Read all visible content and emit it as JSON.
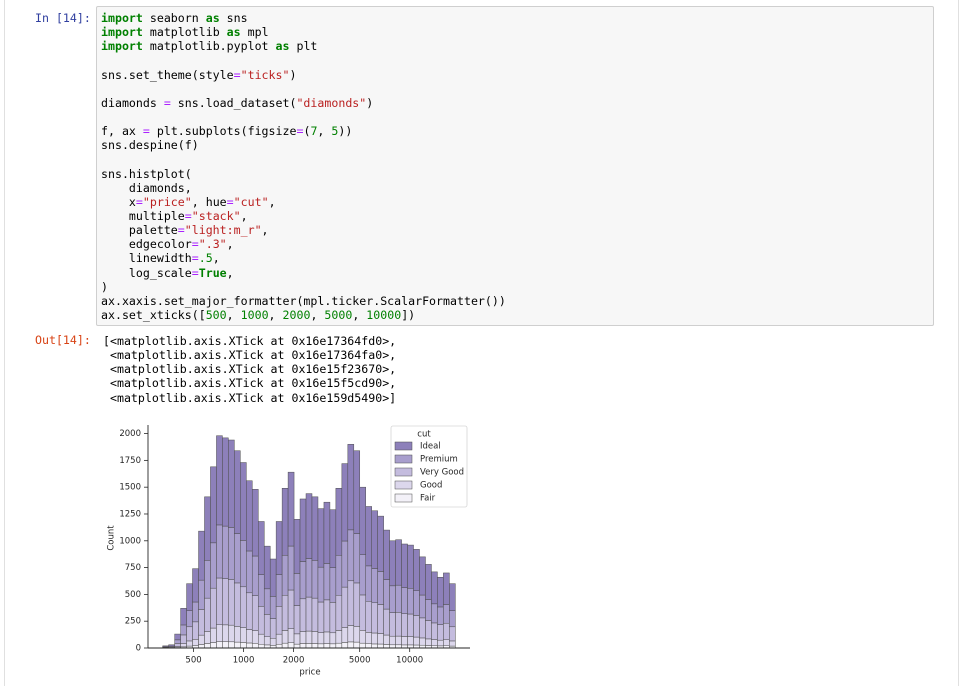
{
  "input_prompt": "In [14]:",
  "code_blocks": [
    [
      "import seaborn as sns",
      "import matplotlib as mpl",
      "import matplotlib.pyplot as plt"
    ],
    [
      "sns.set_theme(style=\"ticks\")"
    ],
    [
      "diamonds = sns.load_dataset(\"diamonds\")"
    ],
    [
      "f, ax = plt.subplots(figsize=(7, 5))",
      "sns.despine(f)"
    ],
    [
      "sns.histplot(",
      "    diamonds,",
      "    x=\"price\", hue=\"cut\",",
      "    multiple=\"stack\",",
      "    palette=\"light:m_r\",",
      "    edgecolor=\".3\",",
      "    linewidth=.5,",
      "    log_scale=True,",
      ")",
      "ax.xaxis.set_major_formatter(mpl.ticker.ScalarFormatter())",
      "ax.set_xticks([500, 1000, 2000, 5000, 10000])"
    ]
  ],
  "output_prompt": "Out[14]:",
  "output_lines": [
    "[<matplotlib.axis.XTick at 0x16e17364fd0>,",
    " <matplotlib.axis.XTick at 0x16e17364fa0>,",
    " <matplotlib.axis.XTick at 0x16e15f23670>,",
    " <matplotlib.axis.XTick at 0x16e15f5cd90>,",
    " <matplotlib.axis.XTick at 0x16e159d5490>]"
  ],
  "chart_data": {
    "type": "histogram",
    "stacked": true,
    "x_label": "price",
    "y_label": "Count",
    "log_x": true,
    "legend_title": "cut",
    "legend_position": "upper-right",
    "edge_color": "#4d4d4d",
    "xlim": [
      266,
      23070
    ],
    "ylim": [
      0,
      2080
    ],
    "xticks": [
      500,
      1000,
      2000,
      5000,
      10000
    ],
    "yticks": [
      0,
      250,
      500,
      750,
      1000,
      1250,
      1500,
      1750,
      2000
    ],
    "bins": [
      326,
      354,
      385,
      418,
      454,
      493,
      536,
      582,
      632,
      687,
      746,
      810,
      880,
      956,
      1039,
      1128,
      1226,
      1332,
      1447,
      1571,
      1707,
      1854,
      2014,
      2188,
      2377,
      2582,
      2805,
      3047,
      3310,
      3595,
      3906,
      4243,
      4609,
      5006,
      5438,
      5908,
      6417,
      6971,
      7573,
      8226,
      8936,
      9707,
      10545,
      11455,
      12443,
      13517,
      14683,
      15950,
      17326,
      18821
    ],
    "series": [
      {
        "name": "Ideal",
        "color": "#8d80ba",
        "values": [
          8,
          12,
          54,
          155,
          252,
          311,
          457,
          592,
          709,
          832,
          823,
          815,
          773,
          726,
          655,
          622,
          496,
          398,
          348,
          496,
          625,
          689,
          504,
          583,
          605,
          592,
          546,
          571,
          541,
          625,
          722,
          798,
          773,
          630,
          554,
          538,
          516,
          462,
          420,
          424,
          407,
          403,
          386,
          356,
          328,
          298,
          277,
          294,
          252
        ]
      },
      {
        "name": "Premium",
        "color": "#a89ecd",
        "values": [
          5,
          8,
          33,
          93,
          150,
          185,
          273,
          353,
          423,
          495,
          490,
          485,
          460,
          433,
          390,
          370,
          295,
          238,
          208,
          295,
          373,
          410,
          300,
          348,
          360,
          353,
          325,
          340,
          323,
          373,
          430,
          475,
          460,
          375,
          330,
          320,
          308,
          275,
          250,
          253,
          243,
          240,
          230,
          213,
          195,
          178,
          165,
          175,
          150
        ]
      },
      {
        "name": "Very Good",
        "color": "#c4bcde",
        "values": [
          4,
          7,
          29,
          81,
          132,
          163,
          240,
          310,
          372,
          436,
          431,
          427,
          405,
          381,
          343,
          326,
          260,
          209,
          183,
          260,
          328,
          361,
          264,
          306,
          317,
          310,
          286,
          299,
          284,
          328,
          378,
          418,
          405,
          330,
          290,
          282,
          271,
          242,
          220,
          222,
          213,
          211,
          202,
          187,
          172,
          156,
          145,
          154,
          132
        ]
      },
      {
        "name": "Good",
        "color": "#dcd7ec",
        "values": [
          2,
          2,
          10,
          30,
          48,
          59,
          87,
          113,
          135,
          158,
          157,
          155,
          147,
          138,
          125,
          118,
          94,
          76,
          66,
          94,
          119,
          131,
          96,
          111,
          115,
          113,
          104,
          109,
          103,
          119,
          138,
          152,
          147,
          120,
          106,
          102,
          98,
          88,
          80,
          81,
          78,
          77,
          74,
          68,
          62,
          57,
          53,
          56,
          48
        ]
      },
      {
        "name": "Fair",
        "color": "#f3f1f8",
        "values": [
          1,
          1,
          4,
          11,
          18,
          22,
          33,
          42,
          51,
          59,
          59,
          58,
          55,
          52,
          47,
          44,
          35,
          29,
          25,
          35,
          45,
          49,
          36,
          42,
          43,
          42,
          39,
          41,
          39,
          45,
          52,
          57,
          55,
          45,
          40,
          38,
          37,
          33,
          30,
          30,
          29,
          29,
          28,
          26,
          23,
          21,
          20,
          21,
          18
        ]
      }
    ]
  }
}
